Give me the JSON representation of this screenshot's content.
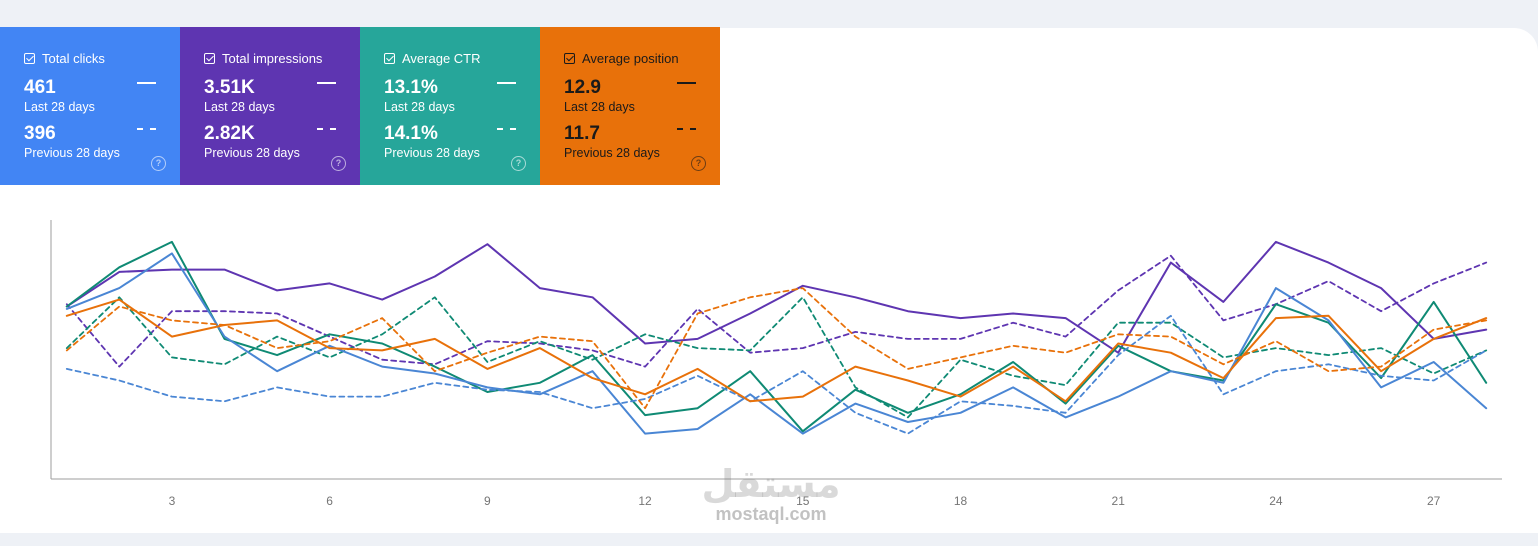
{
  "cards": [
    {
      "id": "clicks",
      "title": "Total clicks",
      "current": "461",
      "current_label": "Last 28 days",
      "previous": "396",
      "previous_label": "Previous 28 days",
      "color": "#4285f4"
    },
    {
      "id": "impressions",
      "title": "Total impressions",
      "current": "3.51K",
      "current_label": "Last 28 days",
      "previous": "2.82K",
      "previous_label": "Previous 28 days",
      "color": "#5e35b1"
    },
    {
      "id": "ctr",
      "title": "Average CTR",
      "current": "13.1%",
      "current_label": "Last 28 days",
      "previous": "14.1%",
      "previous_label": "Previous 28 days",
      "color": "#26a69a"
    },
    {
      "id": "position",
      "title": "Average position",
      "current": "12.9",
      "current_label": "Last 28 days",
      "previous": "11.7",
      "previous_label": "Previous 28 days",
      "color": "#e8710a"
    }
  ],
  "watermark": {
    "arabic": "مستقل",
    "latin": "mostaql.com"
  },
  "chart_data": {
    "type": "line",
    "x_ticks": [
      3,
      6,
      9,
      12,
      15,
      18,
      21,
      24,
      27
    ],
    "x": [
      1,
      2,
      3,
      4,
      5,
      6,
      7,
      8,
      9,
      10,
      11,
      12,
      13,
      14,
      15,
      16,
      17,
      18,
      19,
      20,
      21,
      22,
      23,
      24,
      25,
      26,
      27,
      28
    ],
    "xlim": [
      0.7,
      28.3
    ],
    "ylim": [
      0,
      100
    ],
    "grid": false,
    "legend": "none",
    "y_axis_labels": "none",
    "note_scale": "values are relative 0-100 readings of each series' independent scale",
    "series": [
      {
        "card": "impressions",
        "period": "current",
        "color": "#5e35b1",
        "dashed": false,
        "values": [
          66,
          81,
          82,
          82,
          73,
          76,
          69,
          79,
          93,
          74,
          70,
          50,
          52,
          63,
          75,
          70,
          64,
          61,
          63,
          61,
          46,
          85,
          68,
          94,
          85,
          74,
          52,
          56
        ]
      },
      {
        "card": "impressions",
        "period": "previous",
        "color": "#5e35b1",
        "dashed": true,
        "values": [
          67,
          40,
          64,
          64,
          63,
          53,
          43,
          41,
          51,
          50,
          47,
          40,
          65,
          46,
          48,
          55,
          52,
          52,
          59,
          53,
          73,
          88,
          60,
          67,
          77,
          64,
          76,
          85
        ]
      },
      {
        "card": "ctr",
        "period": "current",
        "color": "#0f8a74",
        "dashed": false,
        "values": [
          66,
          83,
          94,
          52,
          45,
          54,
          50,
          40,
          29,
          33,
          45,
          19,
          22,
          38,
          12,
          30,
          20,
          28,
          42,
          24,
          49,
          38,
          34,
          67,
          59,
          35,
          68,
          33
        ]
      },
      {
        "card": "ctr",
        "period": "previous",
        "color": "#0f8a74",
        "dashed": true,
        "values": [
          48,
          70,
          44,
          41,
          53,
          44,
          54,
          70,
          42,
          51,
          43,
          54,
          48,
          47,
          70,
          31,
          18,
          43,
          36,
          32,
          59,
          59,
          44,
          48,
          45,
          48,
          37,
          47
        ]
      },
      {
        "card": "clicks",
        "period": "current",
        "color": "#4a86d4",
        "dashed": false,
        "values": [
          65,
          74,
          89,
          53,
          38,
          49,
          40,
          37,
          31,
          28,
          38,
          11,
          13,
          28,
          11,
          24,
          16,
          20,
          31,
          18,
          27,
          38,
          33,
          74,
          60,
          31,
          42,
          22
        ]
      },
      {
        "card": "clicks",
        "period": "previous",
        "color": "#4a86d4",
        "dashed": true,
        "values": [
          39,
          34,
          27,
          25,
          31,
          27,
          27,
          33,
          30,
          29,
          22,
          26,
          36,
          25,
          38,
          20,
          11,
          25,
          23,
          20,
          45,
          62,
          28,
          38,
          41,
          36,
          34,
          47
        ]
      },
      {
        "card": "position",
        "period": "current",
        "color": "#e8710a",
        "dashed": false,
        "values": [
          62,
          69,
          53,
          58,
          60,
          48,
          47,
          52,
          39,
          48,
          35,
          28,
          39,
          25,
          27,
          40,
          34,
          27,
          40,
          25,
          50,
          46,
          35,
          61,
          62,
          38,
          52,
          61
        ]
      },
      {
        "card": "position",
        "period": "previous",
        "color": "#e8710a",
        "dashed": true,
        "values": [
          47,
          66,
          60,
          58,
          48,
          51,
          61,
          38,
          46,
          53,
          51,
          22,
          63,
          70,
          74,
          53,
          39,
          44,
          49,
          46,
          54,
          53,
          41,
          51,
          38,
          40,
          56,
          60
        ]
      }
    ]
  }
}
